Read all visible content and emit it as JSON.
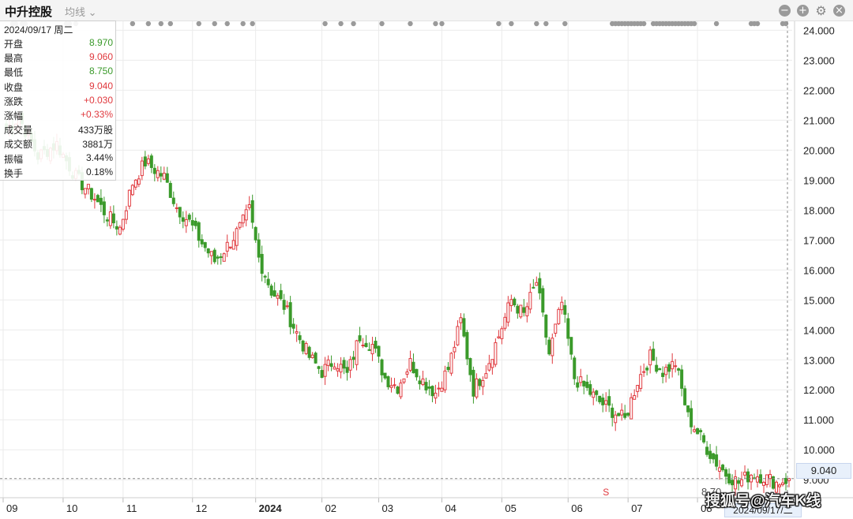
{
  "header": {
    "stock_name": "中升控股",
    "ma_label": "均线 ⌄",
    "icons": [
      "minus-circle-icon",
      "plus-circle-icon",
      "gear-icon",
      "close-icon"
    ]
  },
  "info_panel": {
    "date": "2024/09/17 周二",
    "rows": [
      {
        "label": "开盘",
        "value": "8.970",
        "color": "#3a9a2a"
      },
      {
        "label": "最高",
        "value": "9.060",
        "color": "#e0393e"
      },
      {
        "label": "最低",
        "value": "8.750",
        "color": "#3a9a2a"
      },
      {
        "label": "收盘",
        "value": "9.040",
        "color": "#e0393e"
      },
      {
        "label": "涨跌",
        "value": "+0.030",
        "color": "#e0393e"
      },
      {
        "label": "涨幅",
        "value": "+0.33%",
        "color": "#e0393e"
      },
      {
        "label": "成交量",
        "value": "433万股",
        "color": "#222222"
      },
      {
        "label": "成交额",
        "value": "3881万",
        "color": "#222222"
      },
      {
        "label": "振幅",
        "value": "3.44%",
        "color": "#222222"
      },
      {
        "label": "换手",
        "value": "0.18%",
        "color": "#222222"
      }
    ]
  },
  "price_tag": "9.040",
  "date_tag": "2024/09/17/二",
  "low_label": "8.70",
  "signal_label": "S",
  "watermark": "搜狐号@汽车K线",
  "colors": {
    "up": "#e0393e",
    "down": "#3a9a2a",
    "grid": "#ebebeb"
  },
  "chart_data": {
    "type": "candlestick",
    "ylim": [
      8.4,
      24.3
    ],
    "y_ticks": [
      "24.000",
      "23.000",
      "22.000",
      "21.000",
      "20.000",
      "19.000",
      "18.000",
      "17.000",
      "16.000",
      "15.000",
      "14.000",
      "13.000",
      "12.000",
      "11.000",
      "10.000",
      "9.000"
    ],
    "y_tick_values": [
      24,
      23,
      22,
      21,
      20,
      19,
      18,
      17,
      16,
      15,
      14,
      13,
      12,
      11,
      10,
      9
    ],
    "x_ticks": [
      {
        "label": "09",
        "index": 0
      },
      {
        "label": "10",
        "index": 19
      },
      {
        "label": "11",
        "index": 38
      },
      {
        "label": "12",
        "index": 60
      },
      {
        "label": "2024",
        "index": 80
      },
      {
        "label": "02",
        "index": 101
      },
      {
        "label": "03",
        "index": 119
      },
      {
        "label": "04",
        "index": 139
      },
      {
        "label": "05",
        "index": 158
      },
      {
        "label": "06",
        "index": 179
      },
      {
        "label": "07",
        "index": 198
      },
      {
        "label": "08",
        "index": 220
      }
    ],
    "current_price": 9.04,
    "signal_index": 193,
    "marker_indices": [
      2,
      3,
      5,
      6,
      19,
      20,
      22,
      40,
      45,
      49,
      52,
      61,
      66,
      70,
      75,
      78,
      101,
      106,
      110,
      119,
      128,
      136,
      138,
      156,
      160,
      168,
      171,
      177,
      192,
      193,
      194,
      195,
      196,
      197,
      198,
      199,
      200,
      201,
      202,
      205,
      206,
      207,
      208,
      209,
      210,
      211,
      212,
      213,
      214,
      215,
      216,
      217,
      218,
      225,
      236,
      237,
      238,
      246,
      247
    ],
    "key_closes": [
      [
        0,
        20.7
      ],
      [
        4,
        21.1
      ],
      [
        10,
        19.8
      ],
      [
        16,
        20.2
      ],
      [
        22,
        19.1
      ],
      [
        28,
        18.4
      ],
      [
        32,
        17.8
      ],
      [
        36,
        17.4
      ],
      [
        40,
        18.9
      ],
      [
        44,
        19.6
      ],
      [
        50,
        19.1
      ],
      [
        54,
        18.1
      ],
      [
        58,
        17.6
      ],
      [
        62,
        16.9
      ],
      [
        66,
        16.3
      ],
      [
        70,
        16.8
      ],
      [
        74,
        17.4
      ],
      [
        77,
        18.0
      ],
      [
        80,
        16.4
      ],
      [
        84,
        15.3
      ],
      [
        88,
        14.8
      ],
      [
        92,
        13.9
      ],
      [
        96,
        13.1
      ],
      [
        100,
        12.6
      ],
      [
        104,
        13.0
      ],
      [
        108,
        12.5
      ],
      [
        112,
        13.8
      ],
      [
        116,
        13.5
      ],
      [
        120,
        12.4
      ],
      [
        124,
        12.1
      ],
      [
        128,
        12.9
      ],
      [
        132,
        12.3
      ],
      [
        136,
        11.9
      ],
      [
        140,
        12.7
      ],
      [
        144,
        14.3
      ],
      [
        148,
        12.0
      ],
      [
        152,
        12.7
      ],
      [
        156,
        13.8
      ],
      [
        160,
        15.0
      ],
      [
        164,
        14.5
      ],
      [
        168,
        15.6
      ],
      [
        172,
        13.2
      ],
      [
        176,
        14.9
      ],
      [
        180,
        12.4
      ],
      [
        184,
        12.0
      ],
      [
        188,
        11.6
      ],
      [
        192,
        11.3
      ],
      [
        196,
        11.0
      ],
      [
        200,
        12.3
      ],
      [
        204,
        13.1
      ],
      [
        208,
        12.6
      ],
      [
        212,
        12.9
      ],
      [
        216,
        11.1
      ],
      [
        220,
        10.4
      ],
      [
        224,
        9.7
      ],
      [
        228,
        9.2
      ],
      [
        232,
        8.9
      ],
      [
        236,
        9.2
      ],
      [
        240,
        9.1
      ],
      [
        244,
        8.9
      ],
      [
        248,
        9.04
      ]
    ],
    "last_candle": {
      "open": 8.97,
      "high": 9.06,
      "low": 8.75,
      "close": 9.04
    }
  }
}
